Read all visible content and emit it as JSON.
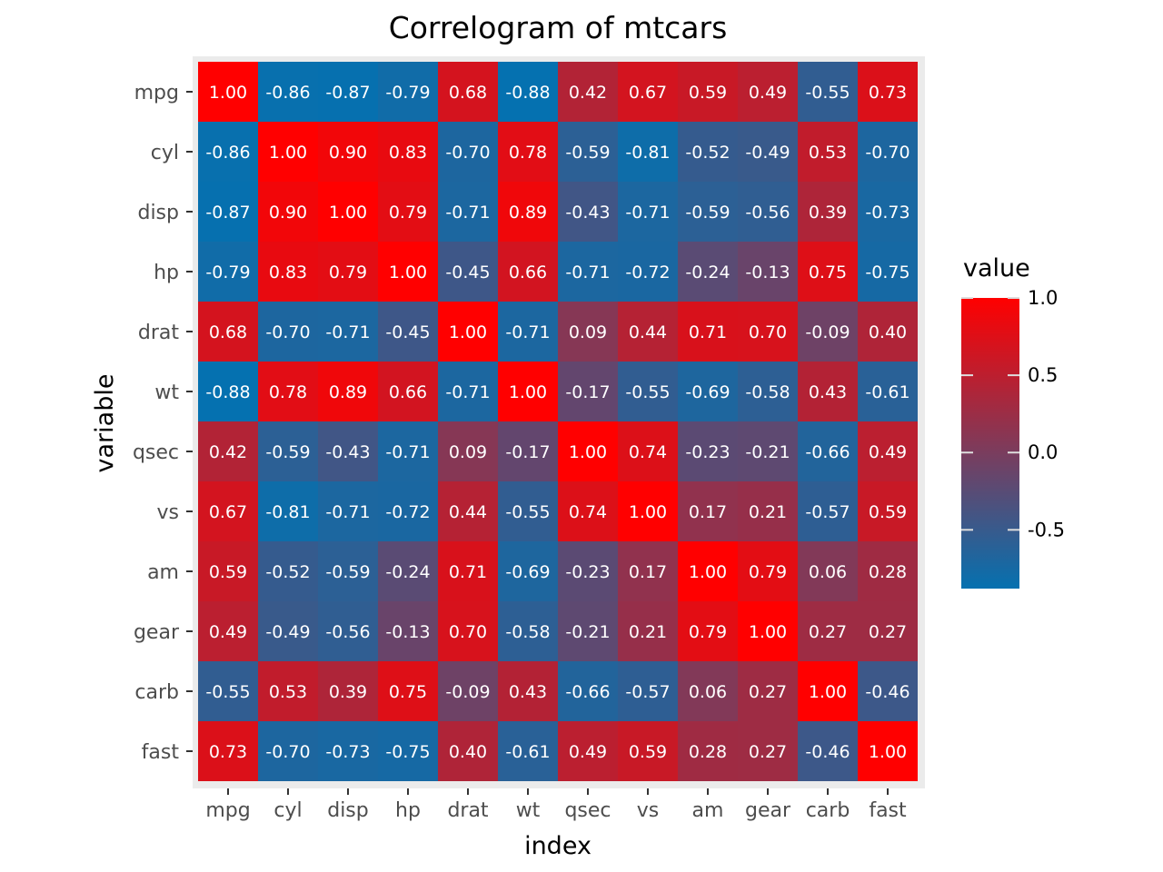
{
  "chart_data": {
    "type": "heatmap",
    "title": "Correlogram of mtcars",
    "xlabel": "index",
    "ylabel": "variable",
    "categories": [
      "mpg",
      "cyl",
      "disp",
      "hp",
      "drat",
      "wt",
      "qsec",
      "vs",
      "am",
      "gear",
      "carb",
      "fast"
    ],
    "rows": [
      "mpg",
      "cyl",
      "disp",
      "hp",
      "drat",
      "wt",
      "qsec",
      "vs",
      "am",
      "gear",
      "carb",
      "fast"
    ],
    "values": [
      [
        1.0,
        -0.86,
        -0.87,
        -0.79,
        0.68,
        -0.88,
        0.42,
        0.67,
        0.59,
        0.49,
        -0.55,
        0.73
      ],
      [
        -0.86,
        1.0,
        0.9,
        0.83,
        -0.7,
        0.78,
        -0.59,
        -0.81,
        -0.52,
        -0.49,
        0.53,
        -0.7
      ],
      [
        -0.87,
        0.9,
        1.0,
        0.79,
        -0.71,
        0.89,
        -0.43,
        -0.71,
        -0.59,
        -0.56,
        0.39,
        -0.73
      ],
      [
        -0.79,
        0.83,
        0.79,
        1.0,
        -0.45,
        0.66,
        -0.71,
        -0.72,
        -0.24,
        -0.13,
        0.75,
        -0.75
      ],
      [
        0.68,
        -0.7,
        -0.71,
        -0.45,
        1.0,
        -0.71,
        0.09,
        0.44,
        0.71,
        0.7,
        -0.09,
        0.4
      ],
      [
        -0.88,
        0.78,
        0.89,
        0.66,
        -0.71,
        1.0,
        -0.17,
        -0.55,
        -0.69,
        -0.58,
        0.43,
        -0.61
      ],
      [
        0.42,
        -0.59,
        -0.43,
        -0.71,
        0.09,
        -0.17,
        1.0,
        0.74,
        -0.23,
        -0.21,
        -0.66,
        0.49
      ],
      [
        0.67,
        -0.81,
        -0.71,
        -0.72,
        0.44,
        -0.55,
        0.74,
        1.0,
        0.17,
        0.21,
        -0.57,
        0.59
      ],
      [
        0.59,
        -0.52,
        -0.59,
        -0.24,
        0.71,
        -0.69,
        -0.23,
        0.17,
        1.0,
        0.79,
        0.06,
        0.28
      ],
      [
        0.49,
        -0.49,
        -0.56,
        -0.13,
        0.7,
        -0.58,
        -0.21,
        0.21,
        0.79,
        1.0,
        0.27,
        0.27
      ],
      [
        -0.55,
        0.53,
        0.39,
        0.75,
        -0.09,
        0.43,
        -0.66,
        -0.57,
        0.06,
        0.27,
        1.0,
        -0.46
      ],
      [
        0.73,
        -0.7,
        -0.73,
        -0.75,
        0.4,
        -0.61,
        0.49,
        0.59,
        0.28,
        0.27,
        -0.46,
        1.0
      ]
    ],
    "color_scale": {
      "min": -0.88,
      "max": 1.0,
      "low_color": "#0571b0",
      "high_color": "#ff0000"
    },
    "legend": {
      "title": "value",
      "position": "right",
      "ticks": [
        1.0,
        0.5,
        0.0,
        -0.5
      ],
      "tick_labels": [
        "1.0",
        "0.5",
        "0.0",
        "-0.5"
      ]
    },
    "grid": true,
    "panel_background": "#ebebeb"
  }
}
